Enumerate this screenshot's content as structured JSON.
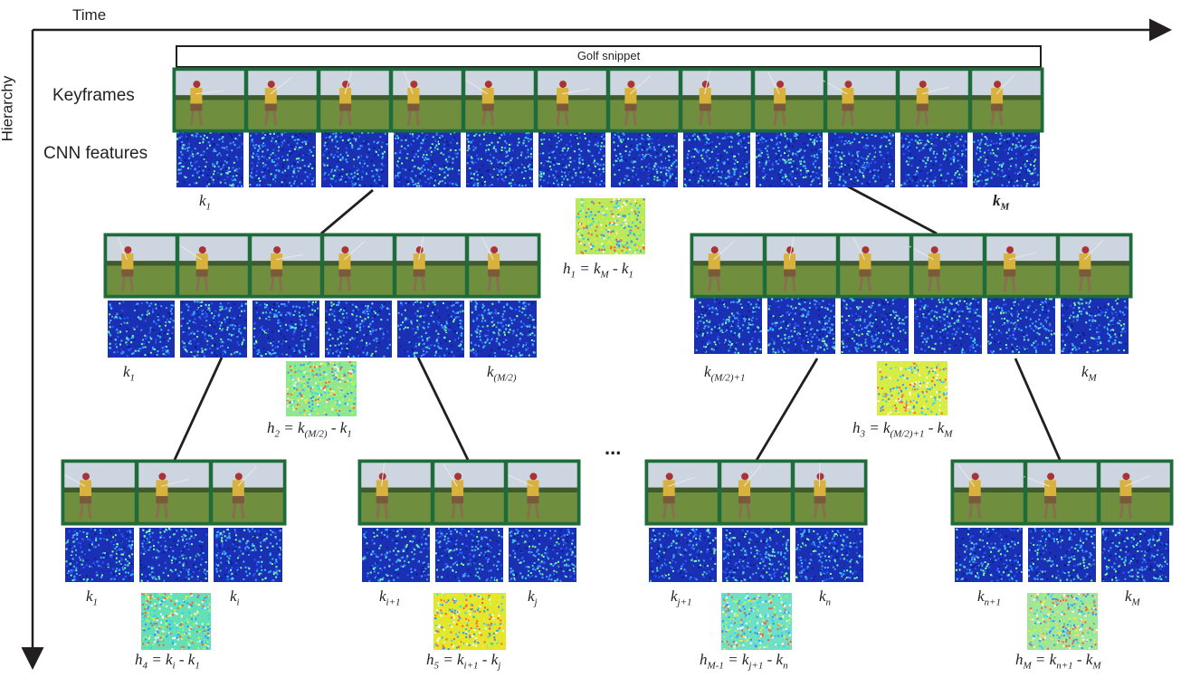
{
  "axes": {
    "time_label": "Time",
    "hierarchy_label": "Hierarchy"
  },
  "snippet_label": "Golf snippet",
  "row_labels": {
    "keyframes": "Keyframes",
    "cnn_features": "CNN features"
  },
  "ellipsis": "...",
  "colors": {
    "frame_border": "#1f6b3a",
    "line": "#231f20",
    "feature_base": "#1a2fb4",
    "sky": "#cdd6e0",
    "grass": "#6f8f3e",
    "golfer_shirt": "#d8b23c"
  },
  "level0": {
    "k_left": [
      "k",
      "1"
    ],
    "k_right": [
      "k",
      "M"
    ]
  },
  "level1": {
    "left": {
      "k_left": [
        "k",
        "1"
      ],
      "k_right": [
        "k",
        "(M/2)"
      ]
    },
    "right": {
      "k_left": [
        "k",
        "(M/2)+1"
      ],
      "k_right": [
        "k",
        "M"
      ]
    }
  },
  "level2": [
    {
      "k_left": [
        "k",
        "1"
      ],
      "k_right": [
        "k",
        "i"
      ]
    },
    {
      "k_left": [
        "k",
        "i+1"
      ],
      "k_right": [
        "k",
        "j"
      ]
    },
    {
      "k_left": [
        "k",
        "j+1"
      ],
      "k_right": [
        "k",
        "n"
      ]
    },
    {
      "k_left": [
        "k",
        "n+1"
      ],
      "k_right": [
        "k",
        "M"
      ]
    }
  ],
  "h_labels": [
    {
      "lhs": [
        "h",
        "1"
      ],
      "a": [
        "k",
        "M"
      ],
      "b": [
        "k",
        "1"
      ]
    },
    {
      "lhs": [
        "h",
        "2"
      ],
      "a": [
        "k",
        "(M/2)"
      ],
      "b": [
        "k",
        "1"
      ]
    },
    {
      "lhs": [
        "h",
        "3"
      ],
      "a": [
        "k",
        "(M/2)+1"
      ],
      "b": [
        "k",
        "M"
      ]
    },
    {
      "lhs": [
        "h",
        "4"
      ],
      "a": [
        "k",
        "i"
      ],
      "b": [
        "k",
        "1"
      ]
    },
    {
      "lhs": [
        "h",
        "5"
      ],
      "a": [
        "k",
        "i+1"
      ],
      "b": [
        "k",
        "j"
      ]
    },
    {
      "lhs": [
        "h",
        "M-1"
      ],
      "a": [
        "k",
        "j+1"
      ],
      "b": [
        "k",
        "n"
      ]
    },
    {
      "lhs": [
        "h",
        "M"
      ],
      "a": [
        "k",
        "n+1"
      ],
      "b": [
        "k",
        "M"
      ]
    }
  ],
  "diff_map_tints": [
    "#b7e95a",
    "#8fe88d",
    "#d9ec45",
    "#64e0b6",
    "#e4e62a",
    "#6fe0c4",
    "#9fe59a"
  ]
}
